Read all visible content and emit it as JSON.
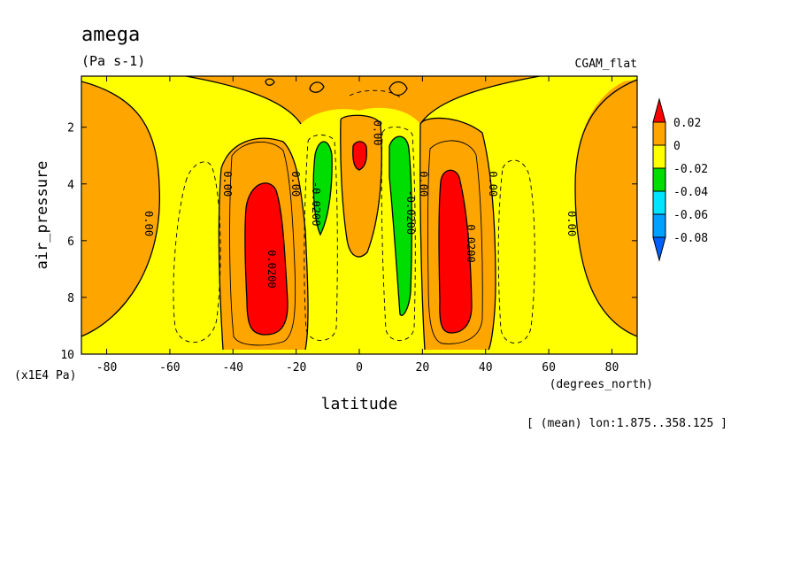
{
  "chart_data": {
    "type": "contour",
    "title": "amega",
    "units": "(Pa s-1)",
    "dataset": "CGAM_flat",
    "xlabel": "latitude",
    "x_units": "(degrees_north)",
    "ylabel": "air_pressure",
    "y_units": "(x1E4 Pa)",
    "footnote": "[ (mean) lon:1.875..358.125 ]",
    "xlim": [
      -88,
      88
    ],
    "ylim": [
      10,
      0.2
    ],
    "x_ticks": [
      -80,
      -60,
      -40,
      -20,
      0,
      20,
      40,
      60,
      80
    ],
    "x_tick_labels": [
      "-80",
      "-60",
      "-40",
      "-20",
      "0",
      "20",
      "40",
      "60",
      "80"
    ],
    "y_ticks": [
      2,
      4,
      6,
      8,
      10
    ],
    "y_tick_labels": [
      "2",
      "4",
      "6",
      "8",
      "10"
    ],
    "colorbar": {
      "labels": [
        "0.02",
        "0",
        "-0.02",
        "-0.04",
        "-0.06",
        "-0.08"
      ],
      "levels": [
        0.02,
        0,
        -0.02,
        -0.04,
        -0.06,
        -0.08
      ],
      "colors": [
        "#ff0000",
        "#ffa500",
        "#ffff00",
        "#00dd00",
        "#00e5ff",
        "#00a0ff",
        "#0060ff"
      ]
    },
    "contour_labels": [
      {
        "text": "0.00",
        "x": -67,
        "y": 5.4
      },
      {
        "text": "0.00",
        "x": -42,
        "y": 4.0
      },
      {
        "text": "0.0200",
        "x": -28,
        "y": 7.0
      },
      {
        "text": "0.00",
        "x": -20.5,
        "y": 4.0
      },
      {
        "text": "-0.0200",
        "x": -14,
        "y": 4.7
      },
      {
        "text": "0.00",
        "x": 5.5,
        "y": 2.2
      },
      {
        "text": "-0.0200",
        "x": 16,
        "y": 5.0
      },
      {
        "text": "0.00",
        "x": 20,
        "y": 4.0
      },
      {
        "text": "0.0200",
        "x": 35,
        "y": 6.1
      },
      {
        "text": "0.00",
        "x": 42,
        "y": 4.0
      },
      {
        "text": "0.00",
        "x": 67,
        "y": 5.4
      }
    ],
    "regions": [
      {
        "name": "subsidence-sh",
        "center_lat": -33,
        "range_lat": [
          -38,
          -27
        ],
        "range_p": [
          3.8,
          9.2
        ],
        "value_min": 0.02
      },
      {
        "name": "subsidence-nh",
        "center_lat": 33,
        "range_lat": [
          27,
          38
        ],
        "range_p": [
          3.6,
          9.2
        ],
        "value_min": 0.02
      },
      {
        "name": "equatorial-core",
        "center_lat": 0,
        "range_lat": [
          -2,
          2
        ],
        "range_p": [
          2.5,
          3.5
        ],
        "value_min": 0.02
      },
      {
        "name": "ascent-sh",
        "center_lat": -12,
        "range_lat": [
          -14.5,
          -10
        ],
        "range_p": [
          2.5,
          6.0
        ],
        "value_range": [
          -0.04,
          -0.02
        ]
      },
      {
        "name": "ascent-nh",
        "center_lat": 13,
        "range_lat": [
          10,
          18
        ],
        "range_p": [
          2.4,
          8.7
        ],
        "value_range": [
          -0.04,
          -0.02
        ]
      }
    ]
  }
}
